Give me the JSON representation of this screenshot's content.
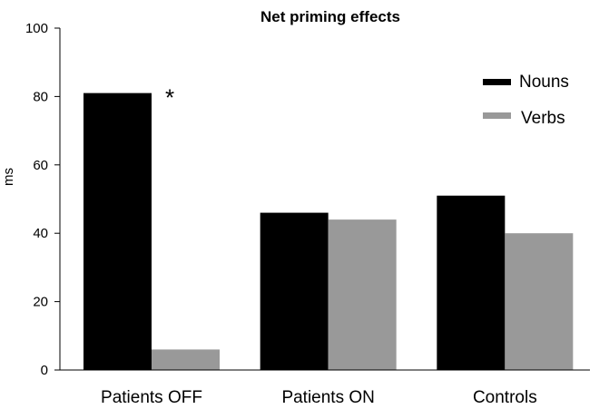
{
  "chart_data": {
    "type": "bar",
    "title": "Net priming effects",
    "xlabel": "",
    "ylabel": "ms",
    "ylim": [
      0,
      100
    ],
    "yticks": [
      0,
      20,
      40,
      60,
      80,
      100
    ],
    "categories": [
      "Patients OFF",
      "Patients ON",
      "Controls"
    ],
    "series": [
      {
        "name": "Nouns",
        "values": [
          81,
          46,
          51
        ],
        "color": "#000000"
      },
      {
        "name": "Verbs",
        "values": [
          6,
          44,
          40
        ],
        "color": "#999999"
      }
    ],
    "grid": false,
    "legend_position": "top-right",
    "annotations": [
      {
        "text": "*",
        "category": "Patients OFF",
        "series": "Nouns"
      }
    ]
  }
}
